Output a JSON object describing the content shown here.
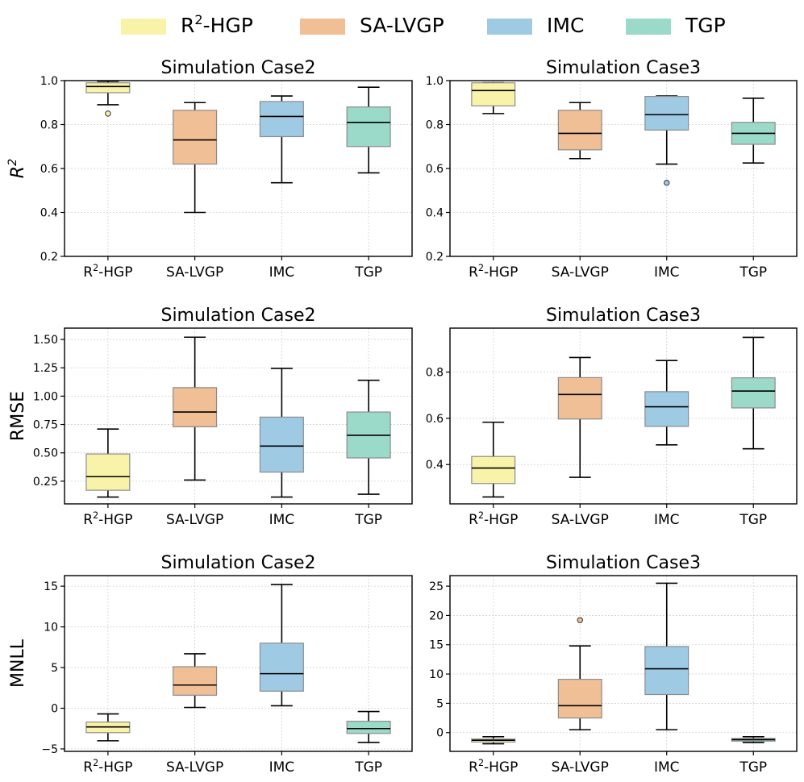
{
  "legend": [
    {
      "base": "R",
      "sup": "2",
      "rest": "-HGP",
      "color": "#f8f3a9"
    },
    {
      "base": "SA-LVGP",
      "sup": "",
      "rest": "",
      "color": "#f0bf96"
    },
    {
      "base": "IMC",
      "sup": "",
      "rest": "",
      "color": "#9ecae4"
    },
    {
      "base": "TGP",
      "sup": "",
      "rest": "",
      "color": "#9bdac8"
    }
  ],
  "chart_data": [
    {
      "type": "box",
      "title": "Simulation Case2",
      "ylabel": {
        "base": "R",
        "sup": "2",
        "italic": true
      },
      "ylim": [
        0.2,
        1.0
      ],
      "yticks": [
        0.2,
        0.4,
        0.6,
        0.8,
        1.0
      ],
      "ytick_labels": [
        "0.2",
        "0.4",
        "0.6",
        "0.8",
        "1.0"
      ],
      "categories": [
        {
          "base": "R",
          "sup": "2",
          "rest": "-HGP"
        },
        {
          "base": "SA-LVGP",
          "sup": "",
          "rest": ""
        },
        {
          "base": "IMC",
          "sup": "",
          "rest": ""
        },
        {
          "base": "TGP",
          "sup": "",
          "rest": ""
        }
      ],
      "series": [
        {
          "name": "R2-HGP",
          "color": "#f8f3a9",
          "whislo": 0.89,
          "q1": 0.945,
          "median": 0.973,
          "q3": 0.99,
          "whishi": 0.997,
          "fliers": [
            0.85
          ]
        },
        {
          "name": "SA-LVGP",
          "color": "#f0bf96",
          "whislo": 0.4,
          "q1": 0.62,
          "median": 0.73,
          "q3": 0.865,
          "whishi": 0.9,
          "fliers": []
        },
        {
          "name": "IMC",
          "color": "#9ecae4",
          "whislo": 0.535,
          "q1": 0.745,
          "median": 0.837,
          "q3": 0.905,
          "whishi": 0.93,
          "fliers": []
        },
        {
          "name": "TGP",
          "color": "#9bdac8",
          "whislo": 0.58,
          "q1": 0.7,
          "median": 0.81,
          "q3": 0.88,
          "whishi": 0.97,
          "fliers": []
        }
      ]
    },
    {
      "type": "box",
      "title": "Simulation Case3",
      "ylabel": null,
      "ylim": [
        0.2,
        1.0
      ],
      "yticks": [
        0.2,
        0.4,
        0.6,
        0.8,
        1.0
      ],
      "ytick_labels": [
        "0.2",
        "0.4",
        "0.6",
        "0.8",
        "1.0"
      ],
      "categories": [
        {
          "base": "R",
          "sup": "2",
          "rest": "-HGP"
        },
        {
          "base": "SA-LVGP",
          "sup": "",
          "rest": ""
        },
        {
          "base": "IMC",
          "sup": "",
          "rest": ""
        },
        {
          "base": "TGP",
          "sup": "",
          "rest": ""
        }
      ],
      "series": [
        {
          "name": "R2-HGP",
          "color": "#f8f3a9",
          "whislo": 0.85,
          "q1": 0.885,
          "median": 0.955,
          "q3": 0.99,
          "whishi": 0.99,
          "fliers": []
        },
        {
          "name": "SA-LVGP",
          "color": "#f0bf96",
          "whislo": 0.645,
          "q1": 0.685,
          "median": 0.76,
          "q3": 0.865,
          "whishi": 0.9,
          "fliers": []
        },
        {
          "name": "IMC",
          "color": "#9ecae4",
          "whislo": 0.62,
          "q1": 0.775,
          "median": 0.845,
          "q3": 0.928,
          "whishi": 0.93,
          "fliers": [
            0.535
          ]
        },
        {
          "name": "TGP",
          "color": "#9bdac8",
          "whislo": 0.625,
          "q1": 0.71,
          "median": 0.76,
          "q3": 0.81,
          "whishi": 0.92,
          "fliers": []
        }
      ]
    },
    {
      "type": "box",
      "title": "Simulation Case2",
      "ylabel": {
        "base": "RMSE",
        "sup": "",
        "italic": false
      },
      "ylim": [
        0.05,
        1.6
      ],
      "yticks": [
        0.25,
        0.5,
        0.75,
        1.0,
        1.25,
        1.5
      ],
      "ytick_labels": [
        "0.25",
        "0.50",
        "0.75",
        "1.00",
        "1.25",
        "1.50"
      ],
      "categories": [
        {
          "base": "R",
          "sup": "2",
          "rest": "-HGP"
        },
        {
          "base": "SA-LVGP",
          "sup": "",
          "rest": ""
        },
        {
          "base": "IMC",
          "sup": "",
          "rest": ""
        },
        {
          "base": "TGP",
          "sup": "",
          "rest": ""
        }
      ],
      "series": [
        {
          "name": "R2-HGP",
          "color": "#f8f3a9",
          "whislo": 0.11,
          "q1": 0.17,
          "median": 0.29,
          "q3": 0.49,
          "whishi": 0.71,
          "fliers": []
        },
        {
          "name": "SA-LVGP",
          "color": "#f0bf96",
          "whislo": 0.26,
          "q1": 0.73,
          "median": 0.86,
          "q3": 1.075,
          "whishi": 1.52,
          "fliers": []
        },
        {
          "name": "IMC",
          "color": "#9ecae4",
          "whislo": 0.11,
          "q1": 0.33,
          "median": 0.56,
          "q3": 0.815,
          "whishi": 1.245,
          "fliers": []
        },
        {
          "name": "TGP",
          "color": "#9bdac8",
          "whislo": 0.135,
          "q1": 0.455,
          "median": 0.655,
          "q3": 0.86,
          "whishi": 1.14,
          "fliers": []
        }
      ]
    },
    {
      "type": "box",
      "title": "Simulation Case3",
      "ylabel": null,
      "ylim": [
        0.23,
        0.99
      ],
      "yticks": [
        0.4,
        0.6,
        0.8
      ],
      "ytick_labels": [
        "0.4",
        "0.6",
        "0.8"
      ],
      "categories": [
        {
          "base": "R",
          "sup": "2",
          "rest": "-HGP"
        },
        {
          "base": "SA-LVGP",
          "sup": "",
          "rest": ""
        },
        {
          "base": "IMC",
          "sup": "",
          "rest": ""
        },
        {
          "base": "TGP",
          "sup": "",
          "rest": ""
        }
      ],
      "series": [
        {
          "name": "R2-HGP",
          "color": "#f8f3a9",
          "whislo": 0.26,
          "q1": 0.318,
          "median": 0.385,
          "q3": 0.435,
          "whishi": 0.583,
          "fliers": []
        },
        {
          "name": "SA-LVGP",
          "color": "#f0bf96",
          "whislo": 0.345,
          "q1": 0.597,
          "median": 0.703,
          "q3": 0.776,
          "whishi": 0.863,
          "fliers": []
        },
        {
          "name": "IMC",
          "color": "#9ecae4",
          "whislo": 0.485,
          "q1": 0.565,
          "median": 0.65,
          "q3": 0.715,
          "whishi": 0.85,
          "fliers": []
        },
        {
          "name": "TGP",
          "color": "#9bdac8",
          "whislo": 0.468,
          "q1": 0.645,
          "median": 0.718,
          "q3": 0.775,
          "whishi": 0.95,
          "fliers": []
        }
      ]
    },
    {
      "type": "box",
      "title": "Simulation Case2",
      "ylabel": {
        "base": "MNLL",
        "sup": "",
        "italic": false
      },
      "ylim": [
        -5.3,
        16.3
      ],
      "yticks": [
        -5,
        0,
        5,
        10,
        15
      ],
      "ytick_labels": [
        "−5",
        "0",
        "5",
        "10",
        "15"
      ],
      "categories": [
        {
          "base": "R",
          "sup": "2",
          "rest": "-HGP"
        },
        {
          "base": "SA-LVGP",
          "sup": "",
          "rest": ""
        },
        {
          "base": "IMC",
          "sup": "",
          "rest": ""
        },
        {
          "base": "TGP",
          "sup": "",
          "rest": ""
        }
      ],
      "series": [
        {
          "name": "R2-HGP",
          "color": "#f8f3a9",
          "whislo": -4.0,
          "q1": -3.0,
          "median": -2.3,
          "q3": -1.7,
          "whishi": -0.7,
          "fliers": []
        },
        {
          "name": "SA-LVGP",
          "color": "#f0bf96",
          "whislo": 0.1,
          "q1": 1.6,
          "median": 2.85,
          "q3": 5.1,
          "whishi": 6.7,
          "fliers": []
        },
        {
          "name": "IMC",
          "color": "#9ecae4",
          "whislo": 0.3,
          "q1": 2.1,
          "median": 4.25,
          "q3": 8.0,
          "whishi": 15.2,
          "fliers": []
        },
        {
          "name": "TGP",
          "color": "#9bdac8",
          "whislo": -4.2,
          "q1": -3.1,
          "median": -2.5,
          "q3": -1.6,
          "whishi": -0.4,
          "fliers": []
        }
      ]
    },
    {
      "type": "box",
      "title": "Simulation Case3",
      "ylabel": null,
      "ylim": [
        -3.2,
        26.8
      ],
      "yticks": [
        0,
        5,
        10,
        15,
        20,
        25
      ],
      "ytick_labels": [
        "0",
        "5",
        "10",
        "15",
        "20",
        "25"
      ],
      "categories": [
        {
          "base": "R",
          "sup": "2",
          "rest": "-HGP"
        },
        {
          "base": "SA-LVGP",
          "sup": "",
          "rest": ""
        },
        {
          "base": "IMC",
          "sup": "",
          "rest": ""
        },
        {
          "base": "TGP",
          "sup": "",
          "rest": ""
        }
      ],
      "series": [
        {
          "name": "R2-HGP",
          "color": "#f8f3a9",
          "whislo": -1.9,
          "q1": -1.6,
          "median": -1.3,
          "q3": -1.1,
          "whishi": -0.7,
          "fliers": []
        },
        {
          "name": "SA-LVGP",
          "color": "#f0bf96",
          "whislo": 0.5,
          "q1": 2.5,
          "median": 4.6,
          "q3": 9.1,
          "whishi": 14.8,
          "fliers": [
            19.2
          ]
        },
        {
          "name": "IMC",
          "color": "#9ecae4",
          "whislo": 0.5,
          "q1": 6.5,
          "median": 10.9,
          "q3": 14.7,
          "whishi": 25.5,
          "fliers": []
        },
        {
          "name": "TGP",
          "color": "#9bdac8",
          "whislo": -1.7,
          "q1": -1.45,
          "median": -1.2,
          "q3": -1.0,
          "whishi": -0.7,
          "fliers": []
        }
      ]
    }
  ]
}
